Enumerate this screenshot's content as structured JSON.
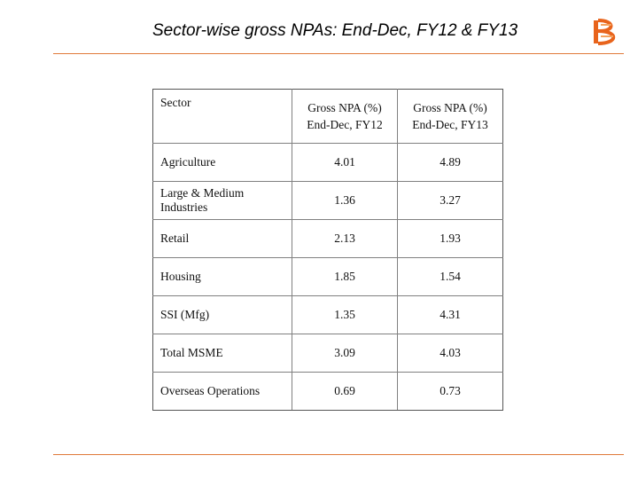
{
  "slide": {
    "title": "Sector-wise gross NPAs: End-Dec, FY12 & FY13",
    "logo_icon": "bank-of-baroda-logo",
    "accent_color": "#e07a3a"
  },
  "table": {
    "headers": {
      "sector": "Sector",
      "fy12_line1": "Gross NPA (%)",
      "fy12_line2": "End-Dec, FY12",
      "fy13_line1": "Gross NPA (%)",
      "fy13_line2": "End-Dec, FY13"
    },
    "rows": [
      {
        "sector": "Agriculture",
        "fy12": "4.01",
        "fy13": "4.89"
      },
      {
        "sector": "Large & Medium Industries",
        "fy12": "1.36",
        "fy13": "3.27"
      },
      {
        "sector": "Retail",
        "fy12": "2.13",
        "fy13": "1.93"
      },
      {
        "sector": "Housing",
        "fy12": "1.85",
        "fy13": "1.54"
      },
      {
        "sector": "SSI (Mfg)",
        "fy12": "1.35",
        "fy13": "4.31"
      },
      {
        "sector": "Total MSME",
        "fy12": "3.09",
        "fy13": "4.03"
      },
      {
        "sector": "Overseas Operations",
        "fy12": "0.69",
        "fy13": "0.73"
      }
    ]
  }
}
